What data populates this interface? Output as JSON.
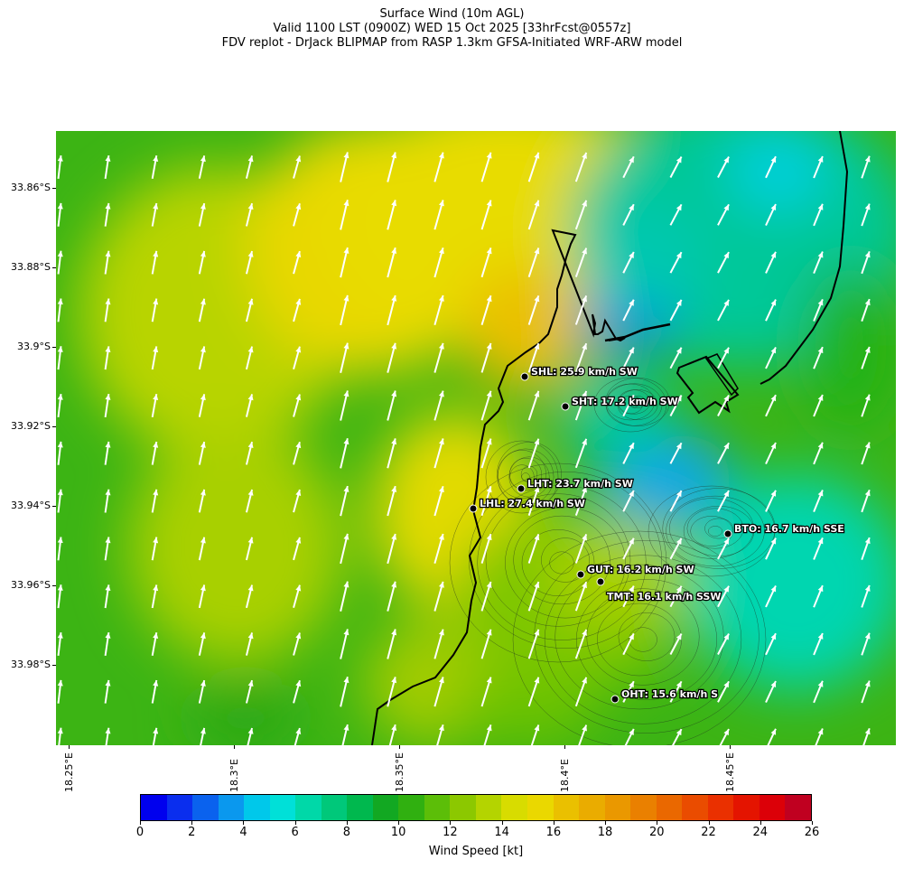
{
  "header": {
    "line1": "Surface Wind (10m AGL)",
    "line2": "Valid 1100 LST (0900Z) WED 15 Oct 2025 [33hrFcst@0557z]",
    "line3": "FDV replot - DrJack BLIPMAP from RASP 1.3km GFSA-Initiated WRF-ARW model"
  },
  "map": {
    "lat_labels": [
      "33.86°S",
      "33.88°S",
      "33.9°S",
      "33.92°S",
      "33.94°S",
      "33.96°S",
      "33.98°S"
    ],
    "lon_labels": [
      "18.25°E",
      "18.3°E",
      "18.35°E",
      "18.4°E",
      "18.45°E"
    ],
    "stations": [
      {
        "label": "SHL: 25.9 km/h SW"
      },
      {
        "label": "SHT: 17.2 km/h SW"
      },
      {
        "label": "LHT: 23.7 km/h SW"
      },
      {
        "label": "LHL: 27.4 km/h SW"
      },
      {
        "label": "BTO: 16.7 km/h SSE"
      },
      {
        "label": "GUT: 16.2 km/h SW"
      },
      {
        "label": "TMT: 16.1 km/h SSW"
      },
      {
        "label": "OHT: 15.6 km/h S"
      }
    ]
  },
  "colorbar": {
    "title": "Wind Speed [kt]",
    "tick_labels": [
      "0",
      "2",
      "4",
      "6",
      "8",
      "10",
      "12",
      "14",
      "16",
      "18",
      "20",
      "22",
      "24",
      "26"
    ],
    "colors": [
      "#0000ee",
      "#0a2eee",
      "#0a62ee",
      "#0a98ee",
      "#00c8ea",
      "#00e0d8",
      "#00d8a8",
      "#00c87a",
      "#00b84e",
      "#12a822",
      "#30b010",
      "#5cbe08",
      "#8cc800",
      "#b4d400",
      "#d8dc00",
      "#ead800",
      "#eac000",
      "#eaac00",
      "#ea9800",
      "#ea8000",
      "#ea6800",
      "#ea4c00",
      "#ea3000",
      "#e41400",
      "#dc0008",
      "#c00020"
    ]
  }
}
